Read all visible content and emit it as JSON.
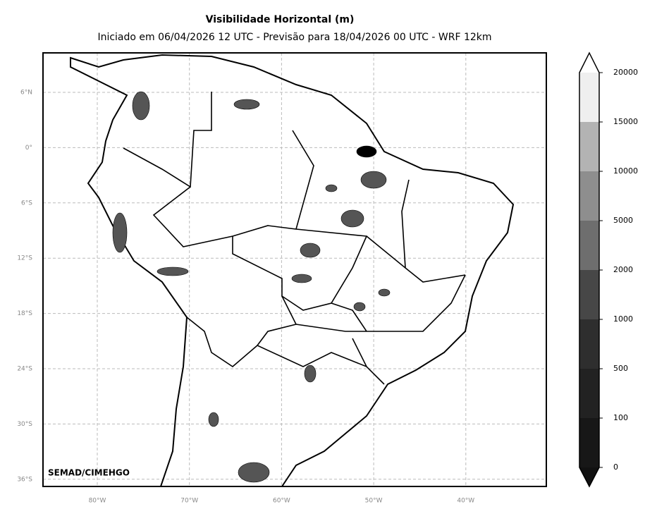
{
  "header": {
    "title": "Visibilidade Horizontal (m)",
    "subtitle": "Iniciado em 06/04/2026 12 UTC - Previsão para 18/04/2026 00 UTC - WRF 12km"
  },
  "map": {
    "lat_labels": [
      "6°N",
      "0°",
      "6°S",
      "12°S",
      "18°S",
      "24°S",
      "30°S",
      "36°S"
    ],
    "lon_labels": [
      "80°W",
      "70°W",
      "60°W",
      "50°W",
      "40°W"
    ],
    "credit": "SEMAD/CIMEHGO"
  },
  "colorbar": {
    "ticks": [
      0,
      100,
      500,
      1000,
      2000,
      5000,
      10000,
      15000,
      20000
    ],
    "colors": [
      "#171717",
      "#222222",
      "#2e2e2e",
      "#474747",
      "#6e6e6e",
      "#8e8e8e",
      "#b3b3b3",
      "#efefef"
    ]
  }
}
